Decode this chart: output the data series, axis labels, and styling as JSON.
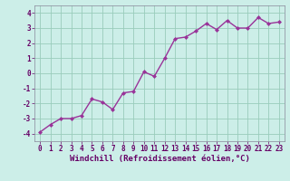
{
  "x": [
    0,
    1,
    2,
    3,
    4,
    5,
    6,
    7,
    8,
    9,
    10,
    11,
    12,
    13,
    14,
    15,
    16,
    17,
    18,
    19,
    20,
    21,
    22,
    23
  ],
  "y": [
    -3.9,
    -3.4,
    -3.0,
    -3.0,
    -2.8,
    -1.7,
    -1.9,
    -2.4,
    -1.3,
    -1.2,
    0.1,
    -0.2,
    1.0,
    2.3,
    2.4,
    2.8,
    3.3,
    2.9,
    3.5,
    3.0,
    3.0,
    3.7,
    3.3,
    3.4
  ],
  "line_color": "#993399",
  "marker": "D",
  "marker_size": 2.0,
  "background_color": "#cceee8",
  "grid_color": "#99ccbb",
  "xlabel": "Windchill (Refroidissement éolien,°C)",
  "xlim": [
    -0.5,
    23.5
  ],
  "ylim": [
    -4.5,
    4.5
  ],
  "yticks": [
    -4,
    -3,
    -2,
    -1,
    0,
    1,
    2,
    3,
    4
  ],
  "xticks": [
    0,
    1,
    2,
    3,
    4,
    5,
    6,
    7,
    8,
    9,
    10,
    11,
    12,
    13,
    14,
    15,
    16,
    17,
    18,
    19,
    20,
    21,
    22,
    23
  ],
  "tick_fontsize": 5.5,
  "xlabel_fontsize": 6.5,
  "linewidth": 1.0,
  "spine_color": "#888888",
  "axis_color": "#666688"
}
